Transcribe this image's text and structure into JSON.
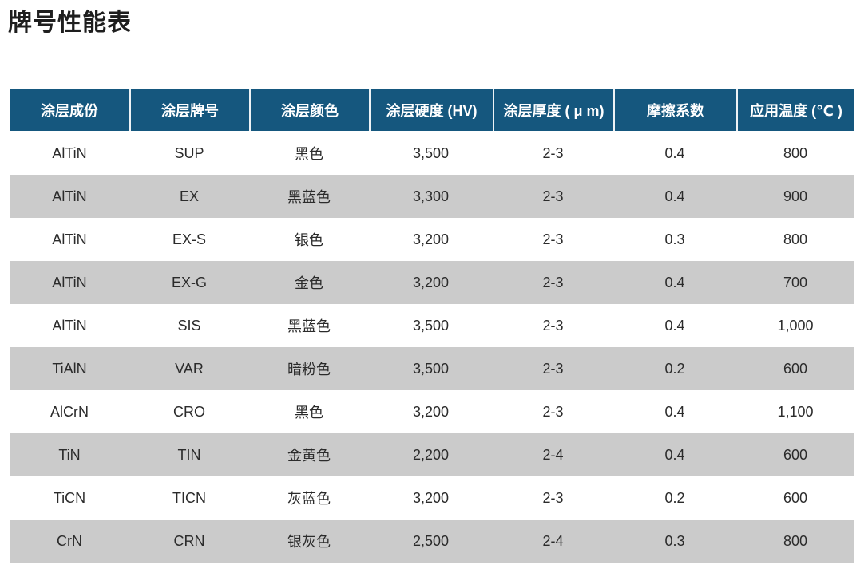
{
  "page": {
    "title": "牌号性能表"
  },
  "table": {
    "headers": [
      "涂层成份",
      "涂层牌号",
      "涂层颜色",
      "涂层硬度 (HV)",
      "涂层厚度 ( μ m)",
      "摩擦系数",
      "应用温度 (℃ )"
    ],
    "rows": [
      [
        "AlTiN",
        "SUP",
        "黑色",
        "3,500",
        "2-3",
        "0.4",
        "800"
      ],
      [
        "AlTiN",
        "EX",
        "黑蓝色",
        "3,300",
        "2-3",
        "0.4",
        "900"
      ],
      [
        "AlTiN",
        "EX-S",
        "银色",
        "3,200",
        "2-3",
        "0.3",
        "800"
      ],
      [
        "AlTiN",
        "EX-G",
        "金色",
        "3,200",
        "2-3",
        "0.4",
        "700"
      ],
      [
        "AlTiN",
        "SIS",
        "黑蓝色",
        "3,500",
        "2-3",
        "0.4",
        "1,000"
      ],
      [
        "TiAlN",
        "VAR",
        "暗粉色",
        "3,500",
        "2-3",
        "0.2",
        "600"
      ],
      [
        "AlCrN",
        "CRO",
        "黑色",
        "3,200",
        "2-3",
        "0.4",
        "1,100"
      ],
      [
        "TiN",
        "TIN",
        "金黄色",
        "2,200",
        "2-4",
        "0.4",
        "600"
      ],
      [
        "TiCN",
        "TICN",
        "灰蓝色",
        "3,200",
        "2-3",
        "0.2",
        "600"
      ],
      [
        "CrN",
        "CRN",
        "银灰色",
        "2,500",
        "2-4",
        "0.3",
        "800"
      ]
    ],
    "colors": {
      "header_bg": "#15577e",
      "header_text": "#ffffff",
      "row_bg": "#ffffff",
      "row_alt_bg": "#cbcbcb",
      "body_text": "#2b2b2b"
    }
  }
}
